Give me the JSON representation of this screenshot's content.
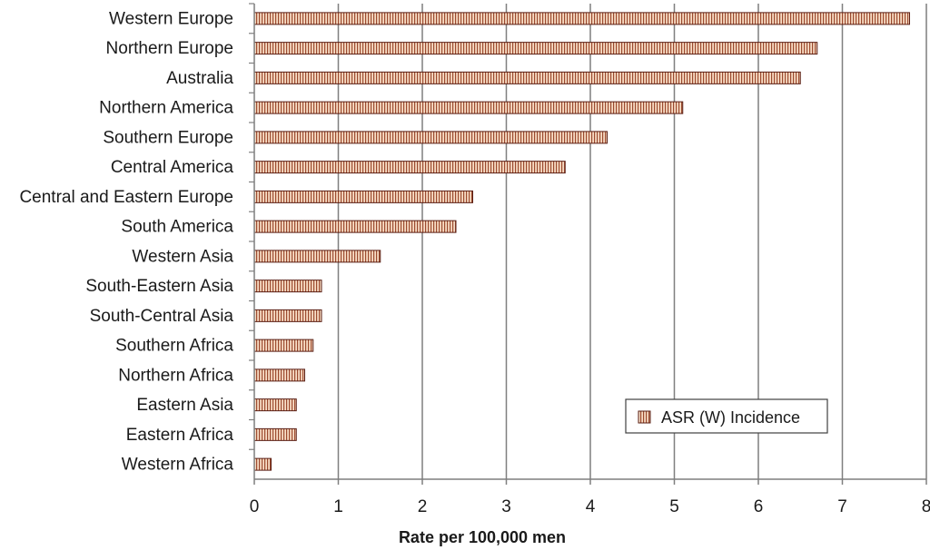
{
  "chart_data": {
    "type": "bar",
    "orientation": "horizontal",
    "categories": [
      "Western Europe",
      "Northern Europe",
      "Australia",
      "Northern America",
      "Southern Europe",
      "Central America",
      "Central and Eastern Europe",
      "South America",
      "Western Asia",
      "South-Eastern Asia",
      "South-Central Asia",
      "Southern Africa",
      "Northern Africa",
      "Eastern Asia",
      "Eastern Africa",
      "Western Africa"
    ],
    "series": [
      {
        "name": "ASR (W) Incidence",
        "values": [
          7.8,
          6.7,
          6.5,
          5.1,
          4.2,
          3.7,
          2.6,
          2.4,
          1.5,
          0.8,
          0.8,
          0.7,
          0.6,
          0.5,
          0.5,
          0.2
        ]
      }
    ],
    "xlabel": "Rate per 100,000 men",
    "ylabel": "",
    "xlim": [
      0,
      8
    ],
    "xticks": [
      "0",
      "1",
      "2",
      "3",
      "4",
      "5",
      "6",
      "7",
      "8"
    ],
    "grid": "vertical major gridlines",
    "legend_position": "bottom-right",
    "colors": {
      "bar_fill": "#f7dcc4",
      "bar_stripe": "#9c4a2e",
      "bar_border": "#5a1f14",
      "grid": "#7f7f7f"
    }
  }
}
